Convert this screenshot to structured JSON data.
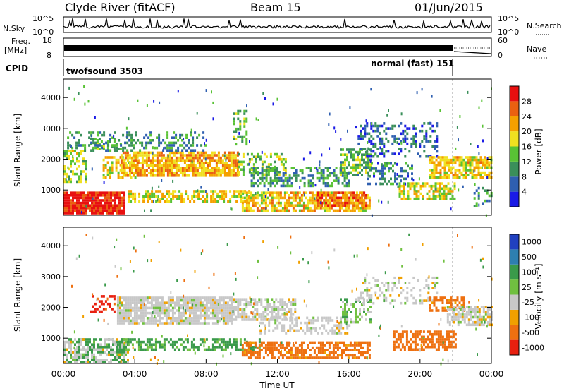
{
  "header": {
    "station": "Clyde River (fitACF)",
    "beam": "Beam 15",
    "date": "01/Jun/2015"
  },
  "panels": {
    "nsky_label": "N.Sky",
    "nsearch_label": "N.Search",
    "freq_label_1": "Freq.",
    "freq_label_2": "[MHz]",
    "nave_label": "Nave",
    "cpid_label": "CPID",
    "nsky_ticks": [
      "10^5",
      "10^0"
    ],
    "nsearch_ticks": [
      "10^5",
      "10^0"
    ],
    "freq_ticks": [
      "18",
      "8"
    ],
    "nave_ticks": [
      "60",
      "0"
    ],
    "cpid_programs": [
      {
        "name": "twofsound 3503",
        "start_hour": 0,
        "end_hour": 21.9
      },
      {
        "name": "normal (fast) 151",
        "start_hour": 21.9,
        "end_hour": 24
      }
    ]
  },
  "chart_data": [
    {
      "type": "heatmap",
      "title": "",
      "ylabel": "Slant Range [km]",
      "xlabel": "",
      "xlim_hours": [
        0,
        24
      ],
      "ylim": [
        180,
        4600
      ],
      "yticks": [
        "1000",
        "2000",
        "3000",
        "4000"
      ],
      "colorbar": {
        "label": "Power [dB]",
        "ticks": [
          "4",
          "8",
          "12",
          "16",
          "20",
          "24",
          "28"
        ],
        "range": [
          0,
          30
        ],
        "colors": [
          "#1a1ae6",
          "#2f5fb0",
          "#3a8f5a",
          "#59c235",
          "#f0e020",
          "#f5a000",
          "#ea6010",
          "#e81010"
        ]
      },
      "regions": [
        {
          "t0": 0.0,
          "t1": 3.4,
          "r0": 250,
          "r1": 950,
          "power": 28,
          "density": 0.92
        },
        {
          "t0": 0.0,
          "t1": 1.2,
          "r0": 1300,
          "r1": 2300,
          "power": 14,
          "density": 0.5
        },
        {
          "t0": 1.5,
          "t1": 3.2,
          "r0": 2300,
          "r1": 2700,
          "power": 12,
          "density": 0.35
        },
        {
          "t0": 2.2,
          "t1": 4.2,
          "r0": 1400,
          "r1": 2100,
          "power": 18,
          "density": 0.55
        },
        {
          "t0": 3.2,
          "t1": 9.8,
          "r0": 1450,
          "r1": 2250,
          "power": 20,
          "density": 0.8
        },
        {
          "t0": 3.6,
          "t1": 10.5,
          "r0": 650,
          "r1": 1000,
          "power": 17,
          "density": 0.6
        },
        {
          "t0": 0.2,
          "t1": 8.0,
          "r0": 2250,
          "r1": 2900,
          "power": 9,
          "density": 0.35
        },
        {
          "t0": 9.8,
          "t1": 12.5,
          "r0": 1500,
          "r1": 2200,
          "power": 14,
          "density": 0.45
        },
        {
          "t0": 9.5,
          "t1": 10.3,
          "r0": 2500,
          "r1": 3600,
          "power": 12,
          "density": 0.45
        },
        {
          "t0": 10.5,
          "t1": 16.0,
          "r0": 1150,
          "r1": 1750,
          "power": 10,
          "density": 0.45
        },
        {
          "t0": 10.0,
          "t1": 17.2,
          "r0": 350,
          "r1": 950,
          "power": 19,
          "density": 0.7
        },
        {
          "t0": 14.2,
          "t1": 17.0,
          "r0": 500,
          "r1": 950,
          "power": 24,
          "density": 0.75
        },
        {
          "t0": 15.5,
          "t1": 17.2,
          "r0": 1500,
          "r1": 2350,
          "power": 12,
          "density": 0.5
        },
        {
          "t0": 17.0,
          "t1": 19.5,
          "r0": 1200,
          "r1": 1900,
          "power": 8,
          "density": 0.4
        },
        {
          "t0": 16.5,
          "t1": 21.0,
          "r0": 2100,
          "r1": 3200,
          "power": 6,
          "density": 0.3
        },
        {
          "t0": 18.8,
          "t1": 22.0,
          "r0": 700,
          "r1": 1250,
          "power": 17,
          "density": 0.6
        },
        {
          "t0": 20.5,
          "t1": 24.0,
          "r0": 1400,
          "r1": 2100,
          "power": 18,
          "density": 0.7
        },
        {
          "t0": 23.0,
          "t1": 24.0,
          "r0": 500,
          "r1": 1100,
          "power": 10,
          "density": 0.4
        }
      ]
    },
    {
      "type": "heatmap",
      "title": "",
      "ylabel": "Slant Range [km]",
      "xlabel": "Time UT",
      "xlim_hours": [
        0,
        24
      ],
      "xticks": [
        "00:00",
        "04:00",
        "08:00",
        "12:00",
        "16:00",
        "20:00",
        "00:00"
      ],
      "ylim": [
        180,
        4600
      ],
      "yticks": [
        "1000",
        "2000",
        "3000",
        "4000"
      ],
      "colorbar": {
        "label": "Velocity [m s⁻¹]",
        "ticks": [
          "1000",
          "500",
          "100",
          "25",
          "-25",
          "-100",
          "-500",
          "-1000"
        ],
        "colors": [
          "#2040c0",
          "#2e7fb0",
          "#3a9a4a",
          "#70c040",
          "#c8c8c8",
          "#f0a000",
          "#ee7010",
          "#e82010"
        ]
      },
      "regions": [
        {
          "t0": 0.0,
          "t1": 3.6,
          "r0": 250,
          "r1": 1000,
          "vel": 300,
          "density": 0.5
        },
        {
          "t0": 0.0,
          "t1": 3.6,
          "r0": 250,
          "r1": 1000,
          "vel": 0,
          "density": 0.35
        },
        {
          "t0": 1.5,
          "t1": 3.0,
          "r0": 1900,
          "r1": 2400,
          "vel": -800,
          "density": 0.35
        },
        {
          "t0": 3.0,
          "t1": 9.5,
          "r0": 1500,
          "r1": 2350,
          "vel": 0,
          "density": 0.85
        },
        {
          "t0": 3.0,
          "t1": 11.0,
          "r0": 650,
          "r1": 1000,
          "vel": 150,
          "density": 0.55
        },
        {
          "t0": 9.5,
          "t1": 13.0,
          "r0": 1600,
          "r1": 2300,
          "vel": 0,
          "density": 0.6
        },
        {
          "t0": 10.0,
          "t1": 17.2,
          "r0": 350,
          "r1": 900,
          "vel": -200,
          "density": 0.65
        },
        {
          "t0": 11.0,
          "t1": 16.0,
          "r0": 1150,
          "r1": 1700,
          "vel": 0,
          "density": 0.45
        },
        {
          "t0": 15.5,
          "t1": 17.2,
          "r0": 1500,
          "r1": 2300,
          "vel": 60,
          "density": 0.45
        },
        {
          "t0": 16.5,
          "t1": 21.0,
          "r0": 2150,
          "r1": 3000,
          "vel": 0,
          "density": 0.3
        },
        {
          "t0": 18.5,
          "t1": 22.0,
          "r0": 650,
          "r1": 1250,
          "vel": -300,
          "density": 0.6
        },
        {
          "t0": 20.5,
          "t1": 22.5,
          "r0": 1900,
          "r1": 2350,
          "vel": -200,
          "density": 0.6
        },
        {
          "t0": 21.5,
          "t1": 24.0,
          "r0": 1400,
          "r1": 2050,
          "vel": 0,
          "density": 0.7
        }
      ]
    }
  ]
}
